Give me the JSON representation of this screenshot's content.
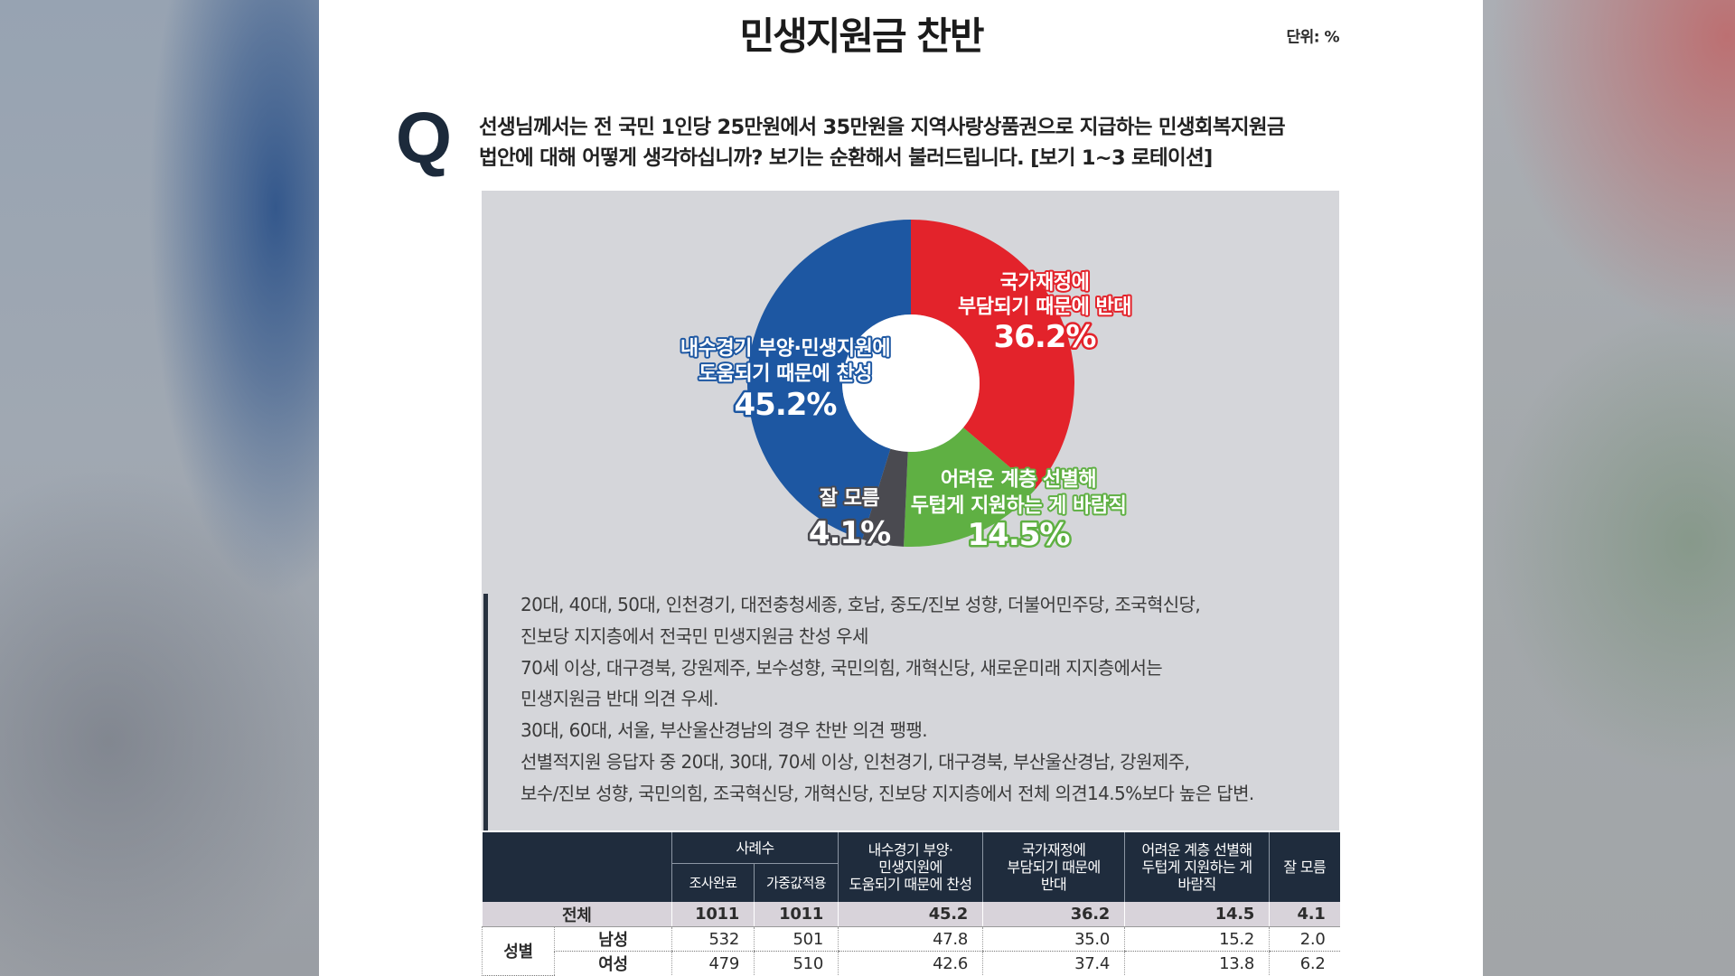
{
  "header": {
    "title": "민생지원금 찬반",
    "unit": "단위: %"
  },
  "question": {
    "mark": "Q",
    "lines": [
      "선생님께서는 전 국민 1인당 25만원에서 35만원을 지역사랑상품권으로 지급하는 민생회복지원금",
      "법안에 대해 어떻게 생각하십니까? 보기는 순환해서 불러드립니다. [보기 1~3 로테이션]"
    ]
  },
  "chart_data": {
    "type": "pie",
    "donut": true,
    "slices": [
      {
        "label_lines": [
          "내수경기 부양·민생지원에",
          "도움되기 때문에 찬성"
        ],
        "value": 45.2,
        "value_label": "45.2%",
        "color": "#1d57a2"
      },
      {
        "label_lines": [
          "국가재정에",
          "부담되기 때문에 반대"
        ],
        "value": 36.2,
        "value_label": "36.2%",
        "color": "#e3232b"
      },
      {
        "label_lines": [
          "어려운 계층 선별해",
          "두텁게 지원하는 게 바람직"
        ],
        "value": 14.5,
        "value_label": "14.5%",
        "color": "#5fb043"
      },
      {
        "label_lines": [
          "잘 모름"
        ],
        "value": 4.1,
        "value_label": "4.1%",
        "color": "#4a4a50"
      }
    ]
  },
  "summary": {
    "lines": [
      "20대, 40대, 50대, 인천경기, 대전충청세종, 호남, 중도/진보 성향, 더불어민주당, 조국혁신당,",
      "진보당 지지층에서 전국민 민생지원금 찬성 우세",
      "70세 이상, 대구경북, 강원제주, 보수성향, 국민의힘, 개혁신당, 새로운미래 지지층에서는",
      "민생지원금 반대 의견 우세.",
      "30대, 60대, 서울, 부산울산경남의 경우 찬반 의견 팽팽.",
      "선별적지원 응답자 중 20대, 30대, 70세 이상, 인천경기, 대구경북, 부산울산경남, 강원제주,",
      "보수/진보 성향, 국민의힘, 조국혁신당, 개혁신당, 진보당 지지층에서 전체 의견14.5%보다 높은 답변."
    ]
  },
  "table": {
    "header": {
      "sample_group": "사례수",
      "sample_cols": [
        "조사완료",
        "가중값적용"
      ],
      "answer_cols": [
        [
          "내수경기 부양·",
          "민생지원에",
          "도움되기 때문에 찬성"
        ],
        [
          "국가재정에",
          "부담되기 때문에",
          "반대"
        ],
        [
          "어려운 계층 선별해",
          "두텁게 지원하는 게",
          "바람직"
        ],
        [
          "잘 모름"
        ]
      ]
    },
    "total": {
      "label": "전체",
      "values": [
        "1011",
        "1011",
        "45.2",
        "36.2",
        "14.5",
        "4.1"
      ]
    },
    "groups": [
      {
        "label": "성별",
        "rows": [
          {
            "label": "남성",
            "values": [
              "532",
              "501",
              "47.8",
              "35.0",
              "15.2",
              "2.0"
            ]
          },
          {
            "label": "여성",
            "values": [
              "479",
              "510",
              "42.6",
              "37.4",
              "13.8",
              "6.2"
            ]
          }
        ]
      }
    ]
  },
  "colors": {
    "chart_background": "#d5d6da",
    "table_header": "#1f2c3d",
    "total_row": "#d8d3da"
  }
}
